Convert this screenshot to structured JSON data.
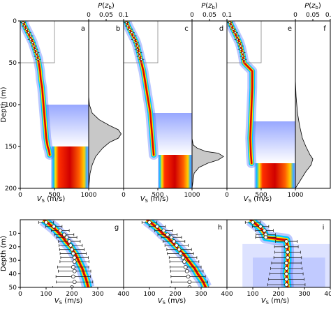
{
  "chart_data": [
    {
      "type": "heatmap",
      "panel": "a",
      "xlabel": "V_S (m/s)",
      "ylabel": "Depth (m)",
      "xlim": [
        0,
        1000
      ],
      "ylim": [
        200,
        0
      ],
      "xticks": [
        0,
        500,
        1000
      ],
      "yticks": [
        0,
        50,
        100,
        150,
        200
      ],
      "inset_box": {
        "x": [
          0,
          500
        ],
        "y": [
          0,
          50
        ]
      },
      "profile": [
        [
          40,
          0
        ],
        [
          60,
          5
        ],
        [
          90,
          10
        ],
        [
          120,
          15
        ],
        [
          150,
          20
        ],
        [
          180,
          25
        ],
        [
          200,
          30
        ],
        [
          220,
          35
        ],
        [
          240,
          40
        ],
        [
          260,
          45
        ],
        [
          270,
          50
        ],
        [
          290,
          60
        ],
        [
          300,
          70
        ],
        [
          320,
          80
        ],
        [
          330,
          90
        ],
        [
          340,
          100
        ],
        [
          350,
          110
        ],
        [
          360,
          120
        ],
        [
          370,
          130
        ],
        [
          380,
          140
        ],
        [
          400,
          150
        ],
        [
          420,
          155
        ],
        [
          430,
          160
        ]
      ],
      "halfspace_vs_range": [
        450,
        1000
      ],
      "halfspace_top": 150
    },
    {
      "type": "area",
      "panel": "b",
      "xlabel": "P(z_b)",
      "xlim": [
        0,
        0.1
      ],
      "xticks": [
        "0",
        "0.05",
        "0.1"
      ],
      "ylim": [
        200,
        0
      ],
      "x": [
        0,
        0.002,
        0.01,
        0.03,
        0.06,
        0.085,
        0.093,
        0.085,
        0.06,
        0.04,
        0.02,
        0.01,
        0.004,
        0
      ],
      "depth": [
        90,
        100,
        110,
        118,
        125,
        130,
        135,
        140,
        145,
        152,
        162,
        172,
        182,
        200
      ]
    },
    {
      "type": "heatmap",
      "panel": "c",
      "xlabel": "V_S (m/s)",
      "xlim": [
        0,
        1000
      ],
      "ylim": [
        200,
        0
      ],
      "xticks": [
        0,
        500,
        1000
      ],
      "inset_box": {
        "x": [
          0,
          500
        ],
        "y": [
          0,
          50
        ]
      },
      "profile": [
        [
          40,
          0
        ],
        [
          60,
          5
        ],
        [
          90,
          10
        ],
        [
          120,
          15
        ],
        [
          150,
          20
        ],
        [
          180,
          25
        ],
        [
          200,
          30
        ],
        [
          230,
          40
        ],
        [
          260,
          50
        ],
        [
          290,
          60
        ],
        [
          310,
          70
        ],
        [
          330,
          80
        ],
        [
          350,
          90
        ],
        [
          370,
          100
        ],
        [
          390,
          110
        ],
        [
          400,
          120
        ],
        [
          410,
          130
        ],
        [
          420,
          140
        ],
        [
          430,
          150
        ],
        [
          440,
          160
        ]
      ],
      "halfspace_vs_range": [
        500,
        1000
      ],
      "halfspace_top": 160
    },
    {
      "type": "area",
      "panel": "d",
      "xlabel": "P(z_b)",
      "xlim": [
        0,
        0.1
      ],
      "xticks": [
        "0",
        "0.05",
        "0.1"
      ],
      "ylim": [
        200,
        0
      ],
      "x": [
        0,
        0.003,
        0.015,
        0.04,
        0.075,
        0.09,
        0.075,
        0.045,
        0.02,
        0.006,
        0
      ],
      "depth": [
        140,
        148,
        152,
        156,
        158,
        162,
        166,
        170,
        175,
        182,
        200
      ]
    },
    {
      "type": "heatmap",
      "panel": "e",
      "xlabel": "V_S (m/s)",
      "xlim": [
        0,
        1000
      ],
      "ylim": [
        200,
        0
      ],
      "xticks": [
        0,
        500,
        1000
      ],
      "inset_box": {
        "x": [
          0,
          500
        ],
        "y": [
          0,
          50
        ]
      },
      "profile": [
        [
          40,
          0
        ],
        [
          60,
          5
        ],
        [
          90,
          10
        ],
        [
          120,
          15
        ],
        [
          150,
          20
        ],
        [
          180,
          25
        ],
        [
          200,
          30
        ],
        [
          230,
          40
        ],
        [
          250,
          50
        ],
        [
          370,
          60
        ],
        [
          370,
          80
        ],
        [
          360,
          100
        ],
        [
          350,
          120
        ],
        [
          340,
          140
        ],
        [
          350,
          160
        ],
        [
          360,
          170
        ]
      ],
      "halfspace_vs_range": [
        400,
        1000
      ],
      "halfspace_top": 170
    },
    {
      "type": "area",
      "panel": "f",
      "xlabel": "P(z_b)",
      "xlim": [
        0,
        0.1
      ],
      "xticks": [
        "0",
        "0.05",
        "0.1"
      ],
      "ylim": [
        200,
        0
      ],
      "x": [
        0,
        0.002,
        0.006,
        0.012,
        0.02,
        0.03,
        0.042,
        0.05,
        0.045,
        0.03,
        0.015,
        0
      ],
      "depth": [
        70,
        90,
        110,
        125,
        140,
        150,
        160,
        165,
        172,
        180,
        190,
        200
      ]
    },
    {
      "type": "scatter",
      "panel": "g",
      "xlabel": "V_S (m/s)",
      "ylabel": "Depth (m)",
      "xlim": [
        0,
        400
      ],
      "ylim": [
        50,
        0
      ],
      "xticks": [
        0,
        100,
        200,
        300,
        400
      ],
      "yticks": [
        10,
        20,
        30,
        40,
        50
      ],
      "profile": [
        [
          90,
          0
        ],
        [
          110,
          3
        ],
        [
          130,
          6
        ],
        [
          150,
          10
        ],
        [
          165,
          13
        ],
        [
          180,
          17
        ],
        [
          195,
          20
        ],
        [
          205,
          23
        ],
        [
          215,
          26
        ],
        [
          225,
          30
        ],
        [
          232,
          33
        ],
        [
          240,
          36
        ],
        [
          247,
          40
        ],
        [
          253,
          43
        ],
        [
          258,
          46
        ],
        [
          263,
          50
        ]
      ],
      "points": [
        [
          100,
          2
        ],
        [
          130,
          5
        ],
        [
          155,
          8
        ],
        [
          170,
          11
        ],
        [
          180,
          13
        ],
        [
          190,
          16
        ],
        [
          195,
          19
        ],
        [
          200,
          22
        ],
        [
          205,
          25
        ],
        [
          210,
          28
        ],
        [
          210,
          31
        ],
        [
          205,
          35
        ],
        [
          210,
          38
        ],
        [
          205,
          42
        ],
        [
          210,
          46
        ],
        [
          200,
          50
        ]
      ]
    },
    {
      "type": "scatter",
      "panel": "h",
      "xlabel": "V_S (m/s)",
      "xlim": [
        0,
        400
      ],
      "ylim": [
        50,
        0
      ],
      "xticks": [
        0,
        100,
        200,
        300,
        400
      ],
      "profile": [
        [
          90,
          0
        ],
        [
          110,
          3
        ],
        [
          130,
          6
        ],
        [
          150,
          10
        ],
        [
          170,
          13
        ],
        [
          190,
          17
        ],
        [
          205,
          20
        ],
        [
          220,
          23
        ],
        [
          235,
          26
        ],
        [
          250,
          30
        ],
        [
          262,
          33
        ],
        [
          275,
          36
        ],
        [
          287,
          40
        ],
        [
          298,
          43
        ],
        [
          308,
          46
        ],
        [
          318,
          50
        ]
      ],
      "points": [
        [
          100,
          2
        ],
        [
          130,
          5
        ],
        [
          155,
          8
        ],
        [
          170,
          11
        ],
        [
          185,
          13
        ],
        [
          195,
          16
        ],
        [
          205,
          19
        ],
        [
          215,
          22
        ],
        [
          220,
          25
        ],
        [
          230,
          28
        ],
        [
          235,
          31
        ],
        [
          240,
          35
        ],
        [
          245,
          38
        ],
        [
          250,
          42
        ],
        [
          255,
          46
        ],
        [
          255,
          50
        ]
      ]
    },
    {
      "type": "scatter",
      "panel": "i",
      "xlabel": "V_S (m/s)",
      "xlim": [
        0,
        400
      ],
      "ylim": [
        50,
        0
      ],
      "xticks": [
        0,
        100,
        200,
        300,
        400
      ],
      "profile": [
        [
          90,
          0
        ],
        [
          110,
          3
        ],
        [
          130,
          6
        ],
        [
          145,
          10
        ],
        [
          150,
          13
        ],
        [
          230,
          15
        ],
        [
          235,
          20
        ],
        [
          235,
          30
        ],
        [
          230,
          40
        ],
        [
          235,
          50
        ]
      ],
      "points": [
        [
          100,
          2
        ],
        [
          130,
          5
        ],
        [
          145,
          8
        ],
        [
          150,
          11
        ],
        [
          150,
          13
        ],
        [
          230,
          16
        ],
        [
          230,
          20
        ],
        [
          235,
          24
        ],
        [
          235,
          28
        ],
        [
          230,
          32
        ],
        [
          230,
          36
        ],
        [
          230,
          40
        ],
        [
          230,
          44
        ],
        [
          230,
          48
        ]
      ]
    }
  ]
}
